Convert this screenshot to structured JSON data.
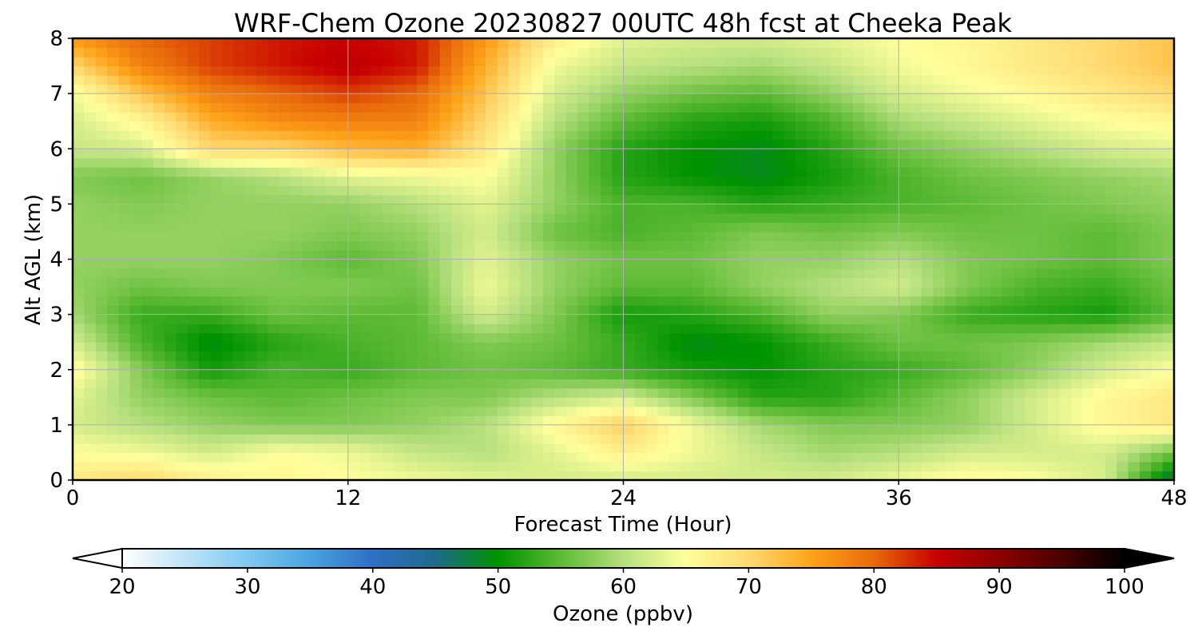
{
  "chart_data": {
    "type": "heatmap",
    "title": "WRF-Chem Ozone  20230827 00UTC 48h fcst at Cheeka Peak",
    "xlabel": "Forecast Time (Hour)",
    "ylabel": "Alt AGL (km)",
    "xlim": [
      0,
      48
    ],
    "ylim": [
      0,
      8
    ],
    "xticks": [
      0,
      12,
      24,
      36,
      48
    ],
    "yticks": [
      0,
      1,
      2,
      3,
      4,
      5,
      6,
      7,
      8
    ],
    "grid": true,
    "x": [
      0,
      3,
      6,
      9,
      12,
      15,
      18,
      21,
      24,
      27,
      30,
      33,
      36,
      39,
      42,
      45,
      48
    ],
    "y": [
      0,
      0.5,
      1,
      1.5,
      2,
      2.5,
      3,
      3.5,
      4,
      4.5,
      5,
      5.5,
      6,
      6.5,
      7,
      7.5,
      8
    ],
    "z": [
      [
        68,
        70,
        67,
        66,
        65,
        64,
        63,
        62,
        62,
        62,
        62,
        62,
        64,
        66,
        65,
        62,
        46
      ],
      [
        65,
        64,
        62,
        65,
        64,
        61,
        60,
        63,
        67,
        64,
        61,
        59,
        60,
        62,
        62,
        62,
        56
      ],
      [
        62,
        60,
        58,
        57,
        57,
        58,
        60,
        66,
        71,
        64,
        59,
        57,
        57,
        58,
        62,
        66,
        68
      ],
      [
        63,
        58,
        56,
        55,
        56,
        57,
        57,
        60,
        62,
        57,
        52,
        52,
        55,
        58,
        62,
        66,
        68
      ],
      [
        66,
        57,
        51,
        54,
        53,
        55,
        56,
        55,
        53,
        51,
        50,
        52,
        53,
        55,
        58,
        62,
        65
      ],
      [
        62,
        54,
        49,
        52,
        54,
        55,
        57,
        56,
        53,
        49,
        50,
        53,
        56,
        56,
        57,
        59,
        61
      ],
      [
        59,
        53,
        53,
        56,
        55,
        55,
        62,
        57,
        51,
        52,
        54,
        58,
        57,
        53,
        52,
        51,
        55
      ],
      [
        58,
        56,
        57,
        57,
        57,
        56,
        64,
        58,
        55,
        55,
        58,
        60,
        62,
        57,
        54,
        53,
        56
      ],
      [
        58,
        58,
        58,
        57,
        55,
        57,
        63,
        58,
        56,
        56,
        58,
        58,
        60,
        57,
        56,
        55,
        57
      ],
      [
        58,
        58,
        58,
        58,
        57,
        58,
        62,
        56,
        54,
        55,
        57,
        56,
        57,
        56,
        56,
        55,
        57
      ],
      [
        58,
        57,
        58,
        58,
        58,
        60,
        63,
        58,
        54,
        54,
        52,
        53,
        54,
        55,
        56,
        57,
        58
      ],
      [
        57,
        56,
        58,
        60,
        63,
        64,
        65,
        58,
        52,
        50,
        49,
        51,
        54,
        56,
        57,
        58,
        59
      ],
      [
        61,
        62,
        70,
        70,
        73,
        74,
        68,
        58,
        52,
        50,
        49,
        52,
        56,
        58,
        60,
        62,
        63
      ],
      [
        62,
        66,
        74,
        77,
        78,
        78,
        70,
        60,
        55,
        52,
        51,
        54,
        59,
        61,
        63,
        65,
        66
      ],
      [
        64,
        72,
        78,
        80,
        82,
        80,
        72,
        62,
        58,
        56,
        55,
        58,
        62,
        64,
        66,
        68,
        70
      ],
      [
        70,
        78,
        82,
        84,
        86,
        84,
        74,
        64,
        61,
        60,
        59,
        61,
        64,
        66,
        68,
        70,
        72
      ],
      [
        76,
        80,
        82,
        84,
        85,
        84,
        76,
        67,
        63,
        62,
        62,
        63,
        65,
        66,
        68,
        70,
        72
      ]
    ],
    "colorbar": {
      "label": "Ozone  (ppbv)",
      "min": 20,
      "max": 100,
      "ticks": [
        20,
        30,
        40,
        50,
        60,
        70,
        80,
        90,
        100
      ],
      "extend": "both",
      "colors": [
        "#ffffff",
        "#bfe3f7",
        "#7fc9f2",
        "#4aa3e0",
        "#2f6fc4",
        "#1e6b8c",
        "#009300",
        "#5dba35",
        "#b7e07e",
        "#ffff9c",
        "#ffd970",
        "#ffa31a",
        "#e86a0a",
        "#c80000",
        "#8c0000",
        "#4a0000",
        "#000000"
      ]
    }
  }
}
